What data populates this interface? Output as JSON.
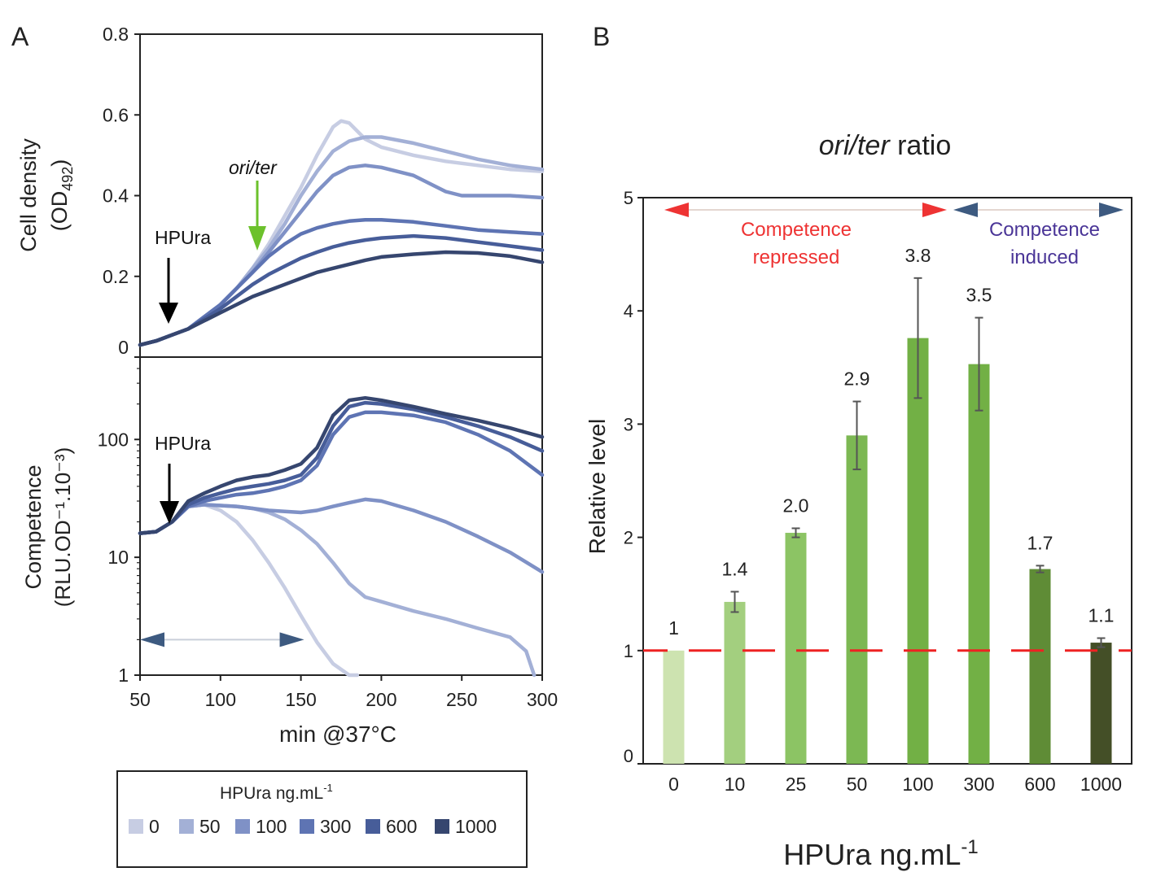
{
  "panel_labels": {
    "a": "A",
    "b": "B"
  },
  "chart_data": [
    {
      "id": "A-top",
      "type": "line",
      "ylabel_main": "Cell density",
      "ylabel_sub_prefix": "(OD",
      "ylabel_sub_subscript": "492",
      "ylabel_sub_suffix": ")",
      "xlim": [
        50,
        300
      ],
      "ylim": [
        0,
        0.8
      ],
      "ytick_labels": [
        "0",
        "0.2",
        "0.4",
        "0.6",
        "0.8"
      ],
      "yticks": [
        0,
        0.2,
        0.4,
        0.6,
        0.8
      ],
      "annotations": [
        {
          "text": "HPUra",
          "x": 67,
          "y": 0.065,
          "color": "#000000"
        },
        {
          "text": "ori/ter",
          "x": 122,
          "y": 0.25,
          "color": "#66c22a"
        }
      ],
      "series": [
        {
          "name": "0",
          "color": "#c7cde3",
          "x": [
            50,
            60,
            70,
            80,
            90,
            100,
            110,
            120,
            130,
            140,
            150,
            160,
            170,
            175,
            180,
            190,
            200,
            220,
            240,
            260,
            280,
            300
          ],
          "y": [
            0.03,
            0.04,
            0.055,
            0.07,
            0.1,
            0.13,
            0.17,
            0.22,
            0.28,
            0.35,
            0.42,
            0.5,
            0.57,
            0.585,
            0.58,
            0.54,
            0.52,
            0.5,
            0.485,
            0.475,
            0.465,
            0.46
          ]
        },
        {
          "name": "50",
          "color": "#a3b0d6",
          "x": [
            50,
            60,
            70,
            80,
            90,
            100,
            110,
            120,
            130,
            140,
            150,
            160,
            170,
            180,
            190,
            200,
            220,
            240,
            260,
            280,
            300
          ],
          "y": [
            0.03,
            0.04,
            0.055,
            0.07,
            0.1,
            0.13,
            0.17,
            0.22,
            0.27,
            0.33,
            0.4,
            0.46,
            0.51,
            0.535,
            0.545,
            0.545,
            0.53,
            0.51,
            0.49,
            0.475,
            0.465
          ]
        },
        {
          "name": "100",
          "color": "#7f91c6",
          "x": [
            50,
            60,
            70,
            80,
            90,
            100,
            110,
            120,
            130,
            140,
            150,
            160,
            170,
            180,
            190,
            200,
            220,
            240,
            250,
            260,
            280,
            300
          ],
          "y": [
            0.03,
            0.04,
            0.055,
            0.07,
            0.1,
            0.13,
            0.17,
            0.21,
            0.26,
            0.31,
            0.36,
            0.41,
            0.45,
            0.47,
            0.475,
            0.47,
            0.45,
            0.41,
            0.4,
            0.4,
            0.4,
            0.395
          ]
        },
        {
          "name": "300",
          "color": "#5e74b3",
          "x": [
            50,
            60,
            70,
            80,
            90,
            100,
            110,
            120,
            130,
            140,
            150,
            160,
            170,
            180,
            190,
            200,
            220,
            240,
            260,
            280,
            300
          ],
          "y": [
            0.03,
            0.04,
            0.055,
            0.07,
            0.1,
            0.13,
            0.17,
            0.21,
            0.25,
            0.28,
            0.305,
            0.32,
            0.33,
            0.337,
            0.34,
            0.34,
            0.335,
            0.325,
            0.315,
            0.31,
            0.305
          ]
        },
        {
          "name": "600",
          "color": "#475d99",
          "x": [
            50,
            60,
            70,
            80,
            90,
            100,
            110,
            120,
            130,
            140,
            150,
            160,
            170,
            180,
            190,
            200,
            220,
            240,
            260,
            280,
            300
          ],
          "y": [
            0.03,
            0.04,
            0.055,
            0.07,
            0.095,
            0.12,
            0.15,
            0.18,
            0.205,
            0.225,
            0.245,
            0.26,
            0.273,
            0.283,
            0.29,
            0.295,
            0.3,
            0.295,
            0.285,
            0.275,
            0.265
          ]
        },
        {
          "name": "1000",
          "color": "#36466f",
          "x": [
            50,
            60,
            70,
            80,
            90,
            100,
            110,
            120,
            130,
            140,
            150,
            160,
            170,
            180,
            190,
            200,
            220,
            240,
            260,
            280,
            300
          ],
          "y": [
            0.03,
            0.04,
            0.055,
            0.07,
            0.09,
            0.11,
            0.13,
            0.15,
            0.165,
            0.18,
            0.195,
            0.21,
            0.22,
            0.23,
            0.24,
            0.248,
            0.255,
            0.26,
            0.258,
            0.25,
            0.235
          ]
        }
      ]
    },
    {
      "id": "A-bottom",
      "type": "line",
      "yscale": "log",
      "ylabel_main": "Competence",
      "ylabel_sub": "(RLU.OD⁻¹.10⁻³)",
      "xlabel": "min @37°C",
      "xlim": [
        50,
        300
      ],
      "ylim": [
        1,
        500
      ],
      "xticks": [
        50,
        100,
        150,
        200,
        250,
        300
      ],
      "xtick_labels": [
        "50",
        "100",
        "150",
        "200",
        "250",
        "300"
      ],
      "yticks": [
        1,
        10,
        100
      ],
      "ytick_labels": [
        "1",
        "10",
        "100"
      ],
      "annotations": [
        {
          "text": "HPUra",
          "x": 68,
          "y": 20,
          "color": "#000000"
        }
      ],
      "double_arrow": {
        "x1": 50,
        "x2": 152,
        "y": 2.0,
        "color": "#3d5a80"
      },
      "series": [
        {
          "name": "0",
          "color": "#c7cde3",
          "x": [
            50,
            60,
            70,
            80,
            90,
            100,
            110,
            120,
            130,
            140,
            150,
            160,
            170,
            180,
            185
          ],
          "y": [
            16,
            16.5,
            20,
            27,
            28,
            25,
            20,
            14,
            9,
            5.5,
            3.2,
            1.9,
            1.25,
            1.0,
            0.9
          ]
        },
        {
          "name": "50",
          "color": "#a3b0d6",
          "x": [
            50,
            60,
            70,
            80,
            90,
            100,
            110,
            120,
            130,
            140,
            150,
            160,
            170,
            180,
            190,
            200,
            220,
            240,
            260,
            280,
            290,
            295
          ],
          "y": [
            16,
            16.5,
            20,
            27,
            28,
            27.5,
            27,
            26,
            24,
            21,
            17,
            13,
            9,
            6,
            4.6,
            4.2,
            3.5,
            3.0,
            2.5,
            2.1,
            1.6,
            1.0
          ]
        },
        {
          "name": "100",
          "color": "#7f91c6",
          "x": [
            50,
            60,
            70,
            80,
            90,
            100,
            110,
            120,
            130,
            140,
            150,
            160,
            170,
            180,
            190,
            200,
            220,
            240,
            260,
            280,
            300
          ],
          "y": [
            16,
            16.5,
            20,
            27,
            28,
            27.5,
            27,
            26,
            25,
            24.5,
            24,
            25,
            27,
            29,
            31,
            30,
            25,
            20,
            15,
            11,
            7.5
          ]
        },
        {
          "name": "300",
          "color": "#5e74b3",
          "x": [
            50,
            60,
            70,
            80,
            90,
            100,
            110,
            120,
            130,
            140,
            150,
            160,
            170,
            180,
            190,
            200,
            220,
            240,
            260,
            280,
            300
          ],
          "y": [
            16,
            16.5,
            20,
            27,
            30,
            32,
            34,
            35,
            37,
            40,
            45,
            60,
            110,
            155,
            170,
            170,
            160,
            140,
            110,
            80,
            50
          ]
        },
        {
          "name": "600",
          "color": "#475d99",
          "x": [
            50,
            60,
            70,
            80,
            90,
            100,
            110,
            120,
            130,
            140,
            150,
            160,
            170,
            180,
            190,
            200,
            220,
            240,
            260,
            280,
            300
          ],
          "y": [
            16,
            16.5,
            20,
            28,
            32,
            35,
            38,
            40,
            42,
            45,
            50,
            70,
            130,
            190,
            205,
            200,
            180,
            155,
            130,
            105,
            80
          ]
        },
        {
          "name": "1000",
          "color": "#36466f",
          "x": [
            50,
            60,
            70,
            80,
            90,
            100,
            110,
            120,
            130,
            140,
            150,
            160,
            170,
            180,
            190,
            200,
            220,
            240,
            260,
            280,
            300
          ],
          "y": [
            16,
            16.5,
            20,
            30,
            35,
            40,
            45,
            48,
            50,
            55,
            62,
            85,
            160,
            215,
            225,
            215,
            190,
            165,
            145,
            125,
            105
          ]
        }
      ]
    },
    {
      "id": "B",
      "type": "bar",
      "title_italic": "ori/ter",
      "title_rest": " ratio",
      "ylabel": "Relative level",
      "xlabel_main": "HPUra ng.mL",
      "xlabel_sup": "-1",
      "ylim": [
        0,
        5
      ],
      "yticks": [
        0,
        1,
        2,
        3,
        4,
        5
      ],
      "ytick_labels": [
        "0",
        "1",
        "2",
        "3",
        "4",
        "5"
      ],
      "categories": [
        "0",
        "10",
        "25",
        "50",
        "100",
        "300",
        "600",
        "1000"
      ],
      "values": [
        1,
        1.43,
        2.04,
        2.9,
        3.76,
        3.53,
        1.72,
        1.07
      ],
      "errors": [
        0,
        0.09,
        0.04,
        0.3,
        0.53,
        0.41,
        0.03,
        0.04
      ],
      "value_labels": [
        "1",
        "1.4",
        "2.0",
        "2.9",
        "3.8",
        "3.5",
        "1.7",
        "1.1"
      ],
      "bar_colors": [
        "#cde3b0",
        "#a3cf7f",
        "#8cc464",
        "#7cb853",
        "#72b045",
        "#72b045",
        "#5f8c36",
        "#444f27"
      ],
      "reference_line": {
        "y": 1,
        "color": "#ee2222"
      },
      "regions": [
        {
          "label_line1": "Competence",
          "label_line2": "repressed",
          "from_index": 0,
          "to_index": 4,
          "color": "#ee3333",
          "label_color": "#ee3333"
        },
        {
          "label_line1": "Competence",
          "label_line2": "induced",
          "from_index": 5,
          "to_index": 7,
          "color": "#3d5a80",
          "label_color": "#4a3597"
        }
      ]
    }
  ],
  "legend": {
    "title_main": "HPUra ng.mL",
    "title_sup": "-1",
    "items": [
      {
        "label": "0",
        "color": "#c7cde3"
      },
      {
        "label": "50",
        "color": "#a3b0d6"
      },
      {
        "label": "100",
        "color": "#7f91c6"
      },
      {
        "label": "300",
        "color": "#5e74b3"
      },
      {
        "label": "600",
        "color": "#475d99"
      },
      {
        "label": "1000",
        "color": "#36466f"
      }
    ]
  }
}
